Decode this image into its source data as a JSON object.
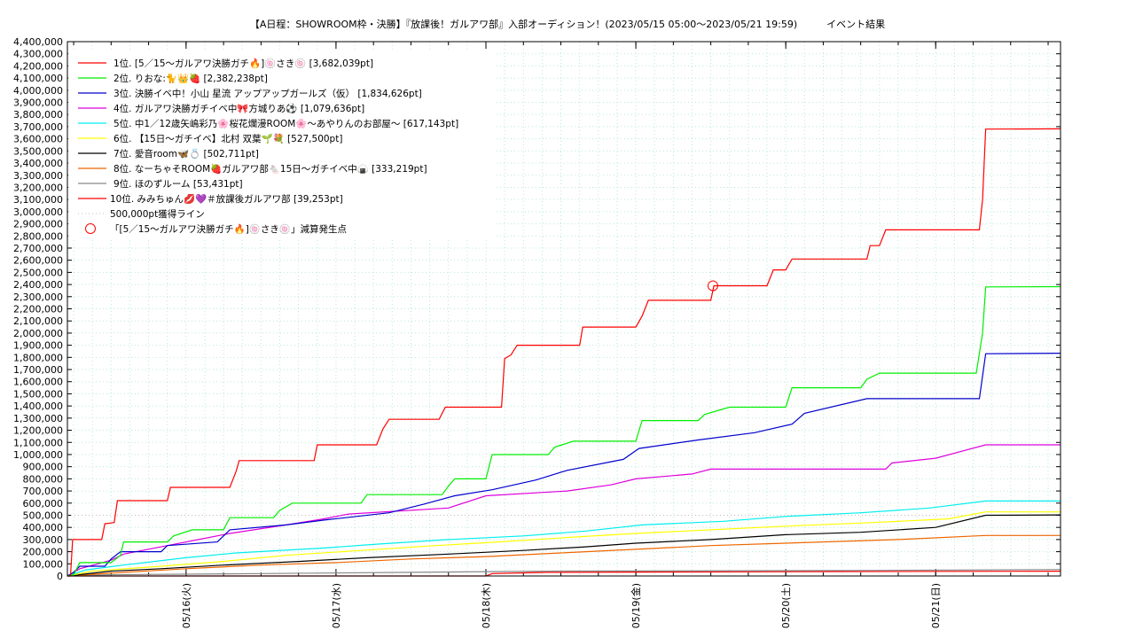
{
  "chart_data": {
    "type": "line",
    "title": "【A日程：SHOWROOM枠・決勝】『放課後！ガルアワ部』入部オーディション！(2023/05/15 05:00〜2023/05/21 19:59)　　　イベント結果",
    "xlabel": "",
    "ylabel": "",
    "ylim": [
      0,
      4400000
    ],
    "y_ticks": [
      "0",
      "100,000",
      "200,000",
      "300,000",
      "400,000",
      "500,000",
      "600,000",
      "700,000",
      "800,000",
      "900,000",
      "1,000,000",
      "1,100,000",
      "1,200,000",
      "1,300,000",
      "1,400,000",
      "1,500,000",
      "1,600,000",
      "1,700,000",
      "1,800,000",
      "1,900,000",
      "2,000,000",
      "2,100,000",
      "2,200,000",
      "2,300,000",
      "2,400,000",
      "2,500,000",
      "2,600,000",
      "2,700,000",
      "2,800,000",
      "2,900,000",
      "3,000,000",
      "3,100,000",
      "3,200,000",
      "3,300,000",
      "3,400,000",
      "3,500,000",
      "3,600,000",
      "3,700,000",
      "3,800,000",
      "3,900,000",
      "4,000,000",
      "4,100,000",
      "4,200,000",
      "4,300,000",
      "4,400,000"
    ],
    "xlim": [
      "2023-05-15 05:00",
      "2023-05-21 19:59"
    ],
    "x_ticks": [
      {
        "label": "05/16(火)",
        "value": "2023-05-16 00:00"
      },
      {
        "label": "05/17(水)",
        "value": "2023-05-17 00:00"
      },
      {
        "label": "05/18(木)",
        "value": "2023-05-18 00:00"
      },
      {
        "label": "05/19(金)",
        "value": "2023-05-19 00:00"
      },
      {
        "label": "05/20(土)",
        "value": "2023-05-20 00:00"
      },
      {
        "label": "05/21(日)",
        "value": "2023-05-21 00:00"
      }
    ],
    "grid": true,
    "legend_position": "top-left",
    "series": [
      {
        "name": "1位. [5／15〜ガルアワ決勝ガチ🔥]🍥さき🍥 [3,682,039pt]",
        "color": "#ff0000",
        "points": [
          [
            "2023-05-15 05:00",
            0
          ],
          [
            "2023-05-15 05:30",
            0
          ],
          [
            "2023-05-15 05:50",
            300000
          ],
          [
            "2023-05-15 10:30",
            300000
          ],
          [
            "2023-05-15 11:00",
            430000
          ],
          [
            "2023-05-15 12:30",
            440000
          ],
          [
            "2023-05-15 13:00",
            620000
          ],
          [
            "2023-05-15 21:00",
            620000
          ],
          [
            "2023-05-15 21:30",
            730000
          ],
          [
            "2023-05-16 07:00",
            730000
          ],
          [
            "2023-05-16 08:00",
            860000
          ],
          [
            "2023-05-16 08:30",
            950000
          ],
          [
            "2023-05-16 20:30",
            950000
          ],
          [
            "2023-05-16 21:00",
            1080000
          ],
          [
            "2023-05-17 06:30",
            1080000
          ],
          [
            "2023-05-17 07:30",
            1210000
          ],
          [
            "2023-05-17 08:30",
            1290000
          ],
          [
            "2023-05-17 16:30",
            1290000
          ],
          [
            "2023-05-17 17:30",
            1390000
          ],
          [
            "2023-05-18 02:30",
            1390000
          ],
          [
            "2023-05-18 03:00",
            1790000
          ],
          [
            "2023-05-18 04:00",
            1820000
          ],
          [
            "2023-05-18 05:00",
            1900000
          ],
          [
            "2023-05-18 15:00",
            1900000
          ],
          [
            "2023-05-18 15:30",
            2050000
          ],
          [
            "2023-05-19 00:00",
            2050000
          ],
          [
            "2023-05-19 01:00",
            2140000
          ],
          [
            "2023-05-19 02:00",
            2270000
          ],
          [
            "2023-05-19 12:00",
            2270000
          ],
          [
            "2023-05-19 12:30",
            2390000
          ],
          [
            "2023-05-19 21:00",
            2390000
          ],
          [
            "2023-05-19 22:00",
            2520000
          ],
          [
            "2023-05-20 00:00",
            2520000
          ],
          [
            "2023-05-20 01:00",
            2610000
          ],
          [
            "2023-05-20 13:00",
            2610000
          ],
          [
            "2023-05-20 13:30",
            2720000
          ],
          [
            "2023-05-20 15:00",
            2720000
          ],
          [
            "2023-05-20 16:00",
            2850000
          ],
          [
            "2023-05-21 07:00",
            2850000
          ],
          [
            "2023-05-21 07:30",
            3100000
          ],
          [
            "2023-05-21 08:00",
            3680000
          ],
          [
            "2023-05-21 19:59",
            3682039
          ]
        ]
      },
      {
        "name": "2位. りおな:🐈👑🍓 [2,382,238pt]",
        "color": "#00ee00",
        "points": [
          [
            "2023-05-15 05:00",
            0
          ],
          [
            "2023-05-15 06:00",
            10000
          ],
          [
            "2023-05-15 07:00",
            110000
          ],
          [
            "2023-05-15 12:00",
            110000
          ],
          [
            "2023-05-15 13:30",
            170000
          ],
          [
            "2023-05-15 14:00",
            280000
          ],
          [
            "2023-05-15 21:00",
            280000
          ],
          [
            "2023-05-15 22:00",
            330000
          ],
          [
            "2023-05-16 01:00",
            380000
          ],
          [
            "2023-05-16 06:00",
            380000
          ],
          [
            "2023-05-16 07:00",
            480000
          ],
          [
            "2023-05-16 14:00",
            480000
          ],
          [
            "2023-05-16 15:00",
            540000
          ],
          [
            "2023-05-16 17:00",
            600000
          ],
          [
            "2023-05-17 04:00",
            600000
          ],
          [
            "2023-05-17 05:00",
            670000
          ],
          [
            "2023-05-17 17:00",
            670000
          ],
          [
            "2023-05-17 18:00",
            740000
          ],
          [
            "2023-05-17 19:00",
            800000
          ],
          [
            "2023-05-18 00:00",
            800000
          ],
          [
            "2023-05-18 01:00",
            1000000
          ],
          [
            "2023-05-18 10:00",
            1000000
          ],
          [
            "2023-05-18 11:00",
            1060000
          ],
          [
            "2023-05-18 14:00",
            1110000
          ],
          [
            "2023-05-19 00:00",
            1110000
          ],
          [
            "2023-05-19 01:00",
            1280000
          ],
          [
            "2023-05-19 10:00",
            1280000
          ],
          [
            "2023-05-19 11:00",
            1330000
          ],
          [
            "2023-05-19 15:00",
            1390000
          ],
          [
            "2023-05-20 00:00",
            1390000
          ],
          [
            "2023-05-20 01:00",
            1550000
          ],
          [
            "2023-05-20 12:00",
            1550000
          ],
          [
            "2023-05-20 13:00",
            1620000
          ],
          [
            "2023-05-20 15:00",
            1670000
          ],
          [
            "2023-05-21 06:30",
            1670000
          ],
          [
            "2023-05-21 07:30",
            2000000
          ],
          [
            "2023-05-21 08:00",
            2380000
          ],
          [
            "2023-05-21 19:59",
            2382238
          ]
        ]
      },
      {
        "name": "3位. 決勝イベ中！小山 星流 アップアップガールズ（仮） [1,834,626pt]",
        "color": "#0000cc",
        "points": [
          [
            "2023-05-15 05:00",
            0
          ],
          [
            "2023-05-15 06:00",
            30000
          ],
          [
            "2023-05-15 07:00",
            80000
          ],
          [
            "2023-05-15 11:00",
            80000
          ],
          [
            "2023-05-15 12:00",
            140000
          ],
          [
            "2023-05-15 13:30",
            200000
          ],
          [
            "2023-05-15 20:00",
            200000
          ],
          [
            "2023-05-15 21:00",
            250000
          ],
          [
            "2023-05-16 05:00",
            280000
          ],
          [
            "2023-05-16 07:00",
            380000
          ],
          [
            "2023-05-16 16:00",
            420000
          ],
          [
            "2023-05-16 22:00",
            460000
          ],
          [
            "2023-05-17 08:30",
            520000
          ],
          [
            "2023-05-17 14:00",
            590000
          ],
          [
            "2023-05-17 19:00",
            660000
          ],
          [
            "2023-05-18 01:00",
            710000
          ],
          [
            "2023-05-18 08:00",
            790000
          ],
          [
            "2023-05-18 13:00",
            870000
          ],
          [
            "2023-05-18 22:00",
            960000
          ],
          [
            "2023-05-19 00:30",
            1050000
          ],
          [
            "2023-05-19 10:00",
            1120000
          ],
          [
            "2023-05-19 19:00",
            1180000
          ],
          [
            "2023-05-20 01:00",
            1250000
          ],
          [
            "2023-05-20 03:00",
            1340000
          ],
          [
            "2023-05-20 13:00",
            1460000
          ],
          [
            "2023-05-21 07:00",
            1460000
          ],
          [
            "2023-05-21 08:00",
            1830000
          ],
          [
            "2023-05-21 19:59",
            1834626
          ]
        ]
      },
      {
        "name": "4位. ガルアワ決勝ガチイベ中🎀方城りあ⚽ [1,079,636pt]",
        "color": "#dd00dd",
        "points": [
          [
            "2023-05-15 05:00",
            0
          ],
          [
            "2023-05-15 07:00",
            60000
          ],
          [
            "2023-05-15 12:00",
            130000
          ],
          [
            "2023-05-15 14:00",
            180000
          ],
          [
            "2023-05-15 21:00",
            250000
          ],
          [
            "2023-05-16 02:00",
            300000
          ],
          [
            "2023-05-16 07:00",
            350000
          ],
          [
            "2023-05-16 16:00",
            420000
          ],
          [
            "2023-05-16 22:00",
            470000
          ],
          [
            "2023-05-17 02:00",
            510000
          ],
          [
            "2023-05-17 18:00",
            560000
          ],
          [
            "2023-05-18 00:00",
            660000
          ],
          [
            "2023-05-18 13:00",
            700000
          ],
          [
            "2023-05-18 20:00",
            750000
          ],
          [
            "2023-05-19 00:00",
            800000
          ],
          [
            "2023-05-19 09:00",
            840000
          ],
          [
            "2023-05-19 12:00",
            880000
          ],
          [
            "2023-05-20 16:00",
            880000
          ],
          [
            "2023-05-20 17:00",
            930000
          ],
          [
            "2023-05-21 00:00",
            970000
          ],
          [
            "2023-05-21 08:00",
            1080000
          ],
          [
            "2023-05-21 19:59",
            1079636
          ]
        ]
      },
      {
        "name": "5位. 中1／12歳矢嶋彩乃🌸桜花爛漫ROOM🌸〜あやりんのお部屋〜 [617,143pt]",
        "color": "#00eeee",
        "points": [
          [
            "2023-05-15 05:00",
            0
          ],
          [
            "2023-05-15 08:00",
            50000
          ],
          [
            "2023-05-15 14:00",
            90000
          ],
          [
            "2023-05-16 00:00",
            150000
          ],
          [
            "2023-05-16 08:00",
            190000
          ],
          [
            "2023-05-16 22:00",
            230000
          ],
          [
            "2023-05-17 06:00",
            260000
          ],
          [
            "2023-05-17 18:00",
            300000
          ],
          [
            "2023-05-18 06:00",
            330000
          ],
          [
            "2023-05-18 16:00",
            370000
          ],
          [
            "2023-05-19 01:00",
            420000
          ],
          [
            "2023-05-19 14:00",
            450000
          ],
          [
            "2023-05-20 00:00",
            490000
          ],
          [
            "2023-05-20 12:00",
            520000
          ],
          [
            "2023-05-20 23:00",
            560000
          ],
          [
            "2023-05-21 08:00",
            617143
          ],
          [
            "2023-05-21 19:59",
            617143
          ]
        ]
      },
      {
        "name": "6位. 【15日〜ガチイベ】北村 双葉🌱💐 [527,500pt]",
        "color": "#ffff00",
        "points": [
          [
            "2023-05-15 05:00",
            0
          ],
          [
            "2023-05-15 09:00",
            40000
          ],
          [
            "2023-05-15 20:00",
            80000
          ],
          [
            "2023-05-16 06:00",
            120000
          ],
          [
            "2023-05-16 16:00",
            170000
          ],
          [
            "2023-05-17 04:00",
            210000
          ],
          [
            "2023-05-17 16:00",
            250000
          ],
          [
            "2023-05-18 02:00",
            280000
          ],
          [
            "2023-05-18 14:00",
            320000
          ],
          [
            "2023-05-19 00:00",
            350000
          ],
          [
            "2023-05-19 12:00",
            380000
          ],
          [
            "2023-05-20 00:00",
            410000
          ],
          [
            "2023-05-20 14:00",
            440000
          ],
          [
            "2023-05-21 02:00",
            470000
          ],
          [
            "2023-05-21 08:00",
            527500
          ],
          [
            "2023-05-21 19:59",
            527500
          ]
        ]
      },
      {
        "name": "7位. 愛音room🦋💍 [502,711pt]",
        "color": "#000000",
        "points": [
          [
            "2023-05-15 05:00",
            0
          ],
          [
            "2023-05-15 12:00",
            40000
          ],
          [
            "2023-05-15 20:00",
            60000
          ],
          [
            "2023-05-16 06:00",
            90000
          ],
          [
            "2023-05-16 18:00",
            120000
          ],
          [
            "2023-05-17 05:00",
            150000
          ],
          [
            "2023-05-17 18:00",
            180000
          ],
          [
            "2023-05-18 06:00",
            210000
          ],
          [
            "2023-05-18 16:00",
            240000
          ],
          [
            "2023-05-19 00:00",
            270000
          ],
          [
            "2023-05-19 12:00",
            300000
          ],
          [
            "2023-05-20 00:00",
            340000
          ],
          [
            "2023-05-20 12:00",
            360000
          ],
          [
            "2023-05-21 00:00",
            400000
          ],
          [
            "2023-05-21 08:00",
            500000
          ],
          [
            "2023-05-21 19:59",
            502711
          ]
        ]
      },
      {
        "name": "8位. なーちゃそROOM🍓ガルアワ部🐁15日〜ガチイベ中🍙 [333,219pt]",
        "color": "#ee6600",
        "points": [
          [
            "2023-05-15 05:00",
            0
          ],
          [
            "2023-05-15 14:00",
            30000
          ],
          [
            "2023-05-16 00:00",
            60000
          ],
          [
            "2023-05-16 12:00",
            90000
          ],
          [
            "2023-05-17 00:00",
            110000
          ],
          [
            "2023-05-17 12:00",
            140000
          ],
          [
            "2023-05-18 00:00",
            160000
          ],
          [
            "2023-05-18 12:00",
            190000
          ],
          [
            "2023-05-19 00:00",
            220000
          ],
          [
            "2023-05-19 12:00",
            250000
          ],
          [
            "2023-05-20 00:00",
            270000
          ],
          [
            "2023-05-20 18:00",
            300000
          ],
          [
            "2023-05-21 08:00",
            333219
          ],
          [
            "2023-05-21 19:59",
            333219
          ]
        ]
      },
      {
        "name": "9位. ほのずルーム [53,431pt]",
        "color": "#888888",
        "points": [
          [
            "2023-05-15 05:00",
            0
          ],
          [
            "2023-05-15 12:00",
            10000
          ],
          [
            "2023-05-16 12:00",
            20000
          ],
          [
            "2023-05-17 12:00",
            30000
          ],
          [
            "2023-05-18 12:00",
            40000
          ],
          [
            "2023-05-20 12:00",
            45000
          ],
          [
            "2023-05-21 19:59",
            53431
          ]
        ]
      },
      {
        "name": "10位. みみちゅん💋💜＃放課後ガルアワ部 [39,253pt]",
        "color": "#ff0000",
        "points": [
          [
            "2023-05-15 05:00",
            0
          ],
          [
            "2023-05-18 00:00",
            0
          ],
          [
            "2023-05-18 01:00",
            20000
          ],
          [
            "2023-05-18 10:00",
            30000
          ],
          [
            "2023-05-20 00:00",
            35000
          ],
          [
            "2023-05-21 19:59",
            39253
          ]
        ]
      }
    ],
    "reference_line": {
      "name": "500,000pt獲得ライン",
      "value": 500000,
      "color": "#bbbbbb"
    },
    "marker": {
      "name": "「[5／15〜ガルアワ決勝ガチ🔥]🍥さき🍥」減算発生点",
      "x": "2023-05-19 12:20",
      "y": 2390000,
      "color": "#ff0000"
    }
  }
}
